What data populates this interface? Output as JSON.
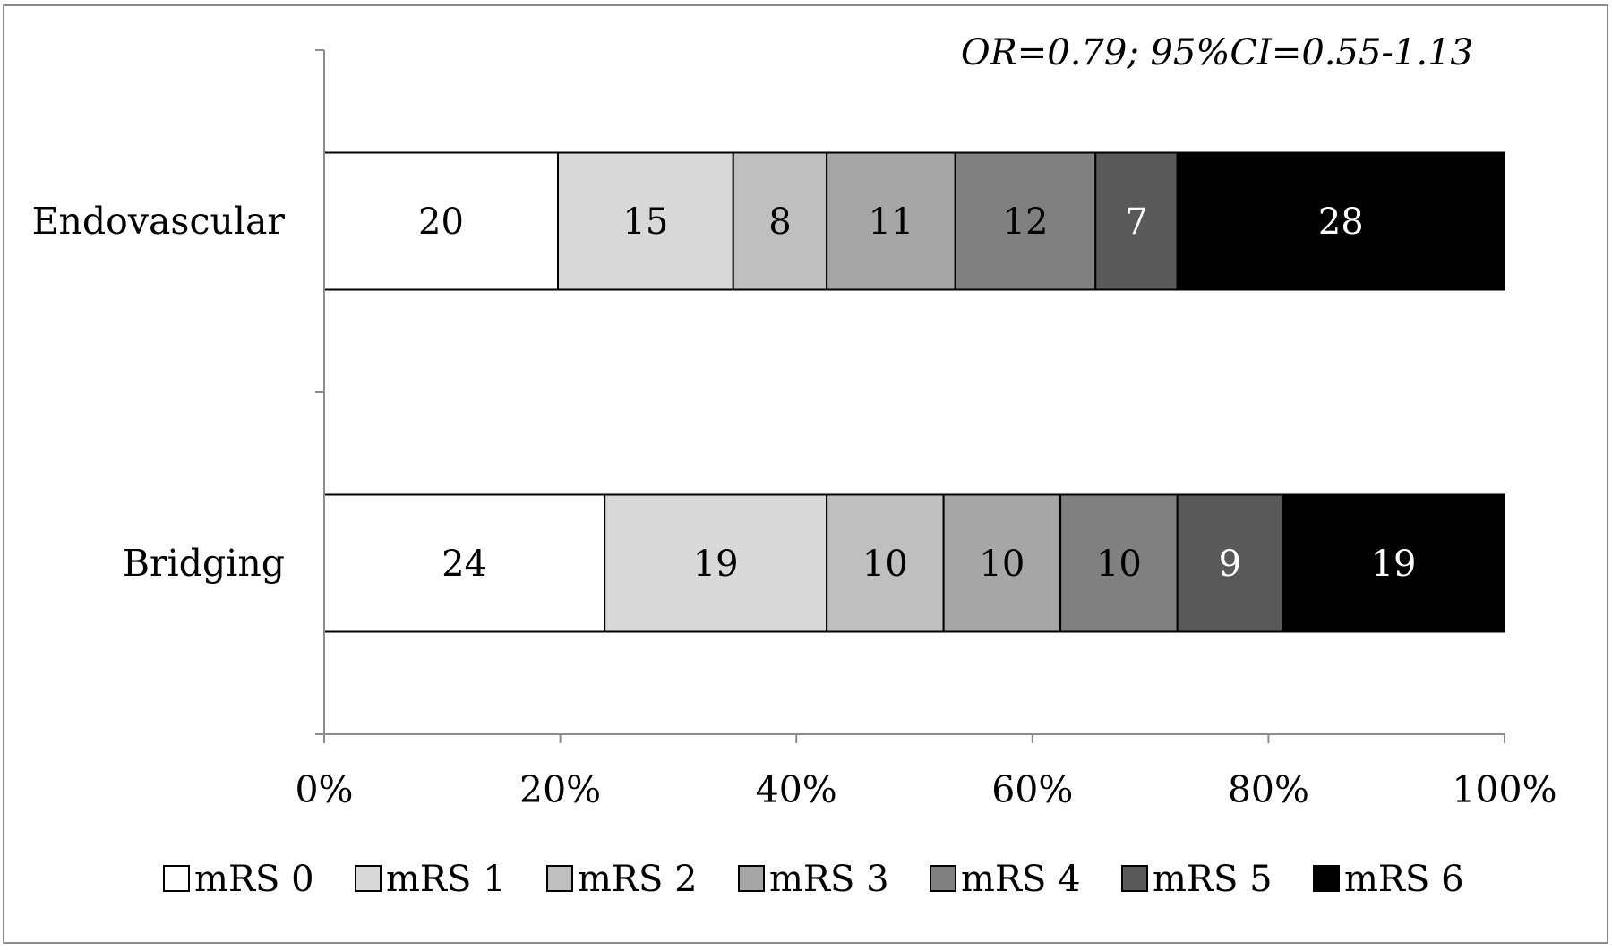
{
  "chart_data": {
    "type": "bar",
    "orientation": "horizontal",
    "stacking": "percent",
    "annotation": "OR=0.79; 95%CI=0.55-1.13",
    "categories": [
      "Endovascular",
      "Bridging"
    ],
    "series": [
      {
        "name": "mRS 0",
        "values": [
          20,
          24
        ],
        "color": "#ffffff",
        "label_color": "#000000"
      },
      {
        "name": "mRS 1",
        "values": [
          15,
          19
        ],
        "color": "#d9d9d9",
        "label_color": "#000000"
      },
      {
        "name": "mRS 2",
        "values": [
          8,
          10
        ],
        "color": "#bfbfbf",
        "label_color": "#000000"
      },
      {
        "name": "mRS 3",
        "values": [
          11,
          10
        ],
        "color": "#a6a6a6",
        "label_color": "#000000"
      },
      {
        "name": "mRS 4",
        "values": [
          12,
          10
        ],
        "color": "#808080",
        "label_color": "#000000"
      },
      {
        "name": "mRS 5",
        "values": [
          7,
          9
        ],
        "color": "#595959",
        "label_color": "#ffffff"
      },
      {
        "name": "mRS 6",
        "values": [
          28,
          19
        ],
        "color": "#000000",
        "label_color": "#ffffff"
      }
    ],
    "x_ticks": [
      "0%",
      "20%",
      "40%",
      "60%",
      "80%",
      "100%"
    ],
    "xlim": [
      0,
      100
    ],
    "legend_position": "bottom",
    "grid": false
  }
}
